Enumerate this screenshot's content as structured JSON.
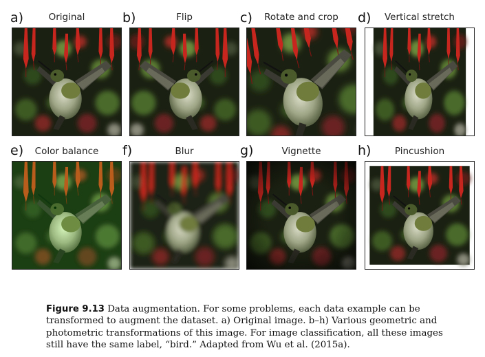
{
  "panels": [
    {
      "letter": "a)",
      "title": "Original"
    },
    {
      "letter": "b)",
      "title": "Flip"
    },
    {
      "letter": "c)",
      "title": "Rotate and crop"
    },
    {
      "letter": "d)",
      "title": "Vertical stretch"
    },
    {
      "letter": "e)",
      "title": "Color balance"
    },
    {
      "letter": "f)",
      "title": "Blur"
    },
    {
      "letter": "g)",
      "title": "Vignette"
    },
    {
      "letter": "h)",
      "title": "Pincushion"
    }
  ],
  "caption": {
    "label": "Figure 9.13",
    "text": " Data augmentation. For some problems, each data example can be transformed to augment the dataset. a) Original image. b–h) Various geometric and photometric transformations of this image. For image classification, all these images still have the same label, “bird.” Adapted from Wu et al. (2015a)."
  }
}
